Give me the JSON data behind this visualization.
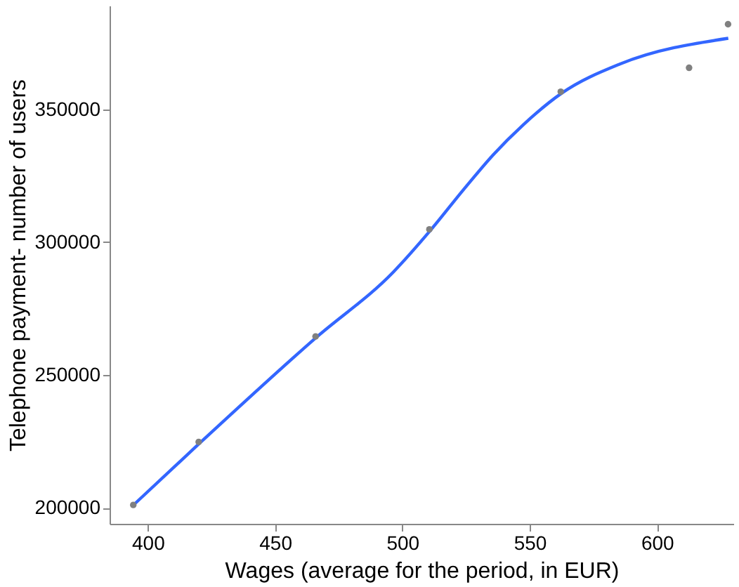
{
  "chart_data": {
    "type": "scatter",
    "xlabel": "Wages (average for the period, in EUR)",
    "ylabel": "Telephone payment- number of users",
    "xlim": [
      385,
      630
    ],
    "ylim": [
      194000,
      389000
    ],
    "xticks": [
      400,
      450,
      500,
      550,
      600
    ],
    "yticks": [
      200000,
      250000,
      300000,
      350000
    ],
    "grid": false,
    "series": [
      {
        "color": "#808080",
        "marker": "circle",
        "x": [
          394.3,
          420,
          465.9,
          510.6,
          562.2,
          612.6,
          627.9
        ],
        "values": [
          201100,
          224800,
          264500,
          304800,
          356600,
          365600,
          382000
        ]
      },
      {
        "type": "line",
        "color": "#3366ff",
        "line_style": "solid",
        "x": [
          394.3,
          420,
          466,
          496.5,
          511,
          524.4,
          535.8,
          547.3,
          562.5,
          585.4,
          628
        ],
        "values": [
          201000,
          224000,
          264000,
          288800,
          304400,
          320200,
          333000,
          344000,
          356000,
          367000,
          376700
        ]
      }
    ]
  }
}
